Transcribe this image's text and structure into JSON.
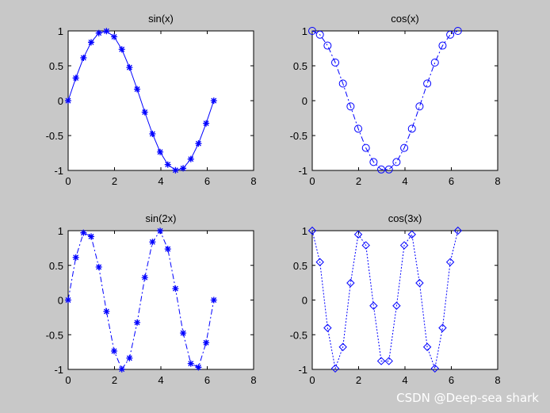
{
  "watermark": "CSDN @Deep-sea shark",
  "chart_data": [
    {
      "type": "line",
      "title": "sin(x)",
      "xlabel": "",
      "ylabel": "",
      "xlim": [
        0,
        8
      ],
      "ylim": [
        -1,
        1
      ],
      "xticks": [
        "0",
        "2",
        "4",
        "6",
        "8"
      ],
      "yticks": [
        "-1",
        "-0.5",
        "0",
        "0.5",
        "1"
      ],
      "grid": false,
      "color": "#0000ff",
      "line_style": "solid",
      "marker": "asterisk",
      "x": [
        0,
        0.3307,
        0.6614,
        0.9921,
        1.3228,
        1.6535,
        1.9842,
        2.3149,
        2.6456,
        2.9762,
        3.3069,
        3.6376,
        3.9683,
        4.299,
        4.6297,
        4.9604,
        5.2911,
        5.6218,
        5.9525,
        6.2832
      ],
      "y": [
        0,
        0.3247,
        0.6142,
        0.8372,
        0.9694,
        0.9966,
        0.9158,
        0.7357,
        0.4759,
        0.1646,
        -0.1646,
        -0.4759,
        -0.7357,
        -0.9158,
        -0.9966,
        -0.9694,
        -0.8372,
        -0.6142,
        -0.3247,
        0
      ]
    },
    {
      "type": "line",
      "title": "cos(x)",
      "xlabel": "",
      "ylabel": "",
      "xlim": [
        0,
        8
      ],
      "ylim": [
        -1,
        1
      ],
      "xticks": [
        "0",
        "2",
        "4",
        "6",
        "8"
      ],
      "yticks": [
        "-1",
        "-0.5",
        "0",
        "0.5",
        "1"
      ],
      "grid": false,
      "color": "#0000ff",
      "line_style": "dash-dot",
      "marker": "circle",
      "x": [
        0,
        0.3307,
        0.6614,
        0.9921,
        1.3228,
        1.6535,
        1.9842,
        2.3149,
        2.6456,
        2.9762,
        3.3069,
        3.6376,
        3.9683,
        4.299,
        4.6297,
        4.9604,
        5.2911,
        5.6218,
        5.9525,
        6.2832
      ],
      "y": [
        1,
        0.9458,
        0.7891,
        0.5469,
        0.2455,
        -0.0826,
        -0.4017,
        -0.6773,
        -0.8795,
        -0.9864,
        -0.9864,
        -0.8795,
        -0.6773,
        -0.4017,
        -0.0826,
        0.2455,
        0.5469,
        0.7891,
        0.9458,
        1
      ]
    },
    {
      "type": "line",
      "title": "sin(2x)",
      "xlabel": "",
      "ylabel": "",
      "xlim": [
        0,
        8
      ],
      "ylim": [
        -1,
        1
      ],
      "xticks": [
        "0",
        "2",
        "4",
        "6",
        "8"
      ],
      "yticks": [
        "-1",
        "-0.5",
        "0",
        "0.5",
        "1"
      ],
      "grid": false,
      "color": "#0000ff",
      "line_style": "dash-dot",
      "marker": "asterisk",
      "x": [
        0,
        0.3307,
        0.6614,
        0.9921,
        1.3228,
        1.6535,
        1.9842,
        2.3149,
        2.6456,
        2.9762,
        3.3069,
        3.6376,
        3.9683,
        4.299,
        4.6297,
        4.9604,
        5.2911,
        5.6218,
        5.9525,
        6.2832
      ],
      "y": [
        0,
        0.6142,
        0.9694,
        0.9158,
        0.4759,
        -0.1646,
        -0.7357,
        -0.9966,
        -0.8372,
        -0.3247,
        0.3247,
        0.8372,
        0.9966,
        0.7357,
        0.1646,
        -0.4759,
        -0.9158,
        -0.9694,
        -0.6142,
        0
      ]
    },
    {
      "type": "line",
      "title": "cos(3x)",
      "xlabel": "",
      "ylabel": "",
      "xlim": [
        0,
        8
      ],
      "ylim": [
        -1,
        1
      ],
      "xticks": [
        "0",
        "2",
        "4",
        "6",
        "8"
      ],
      "yticks": [
        "-1",
        "-0.5",
        "0",
        "0.5",
        "1"
      ],
      "grid": false,
      "color": "#0000ff",
      "line_style": "dotted",
      "marker": "diamond",
      "x": [
        0,
        0.3307,
        0.6614,
        0.9921,
        1.3228,
        1.6535,
        1.9842,
        2.3149,
        2.6456,
        2.9762,
        3.3069,
        3.6376,
        3.9683,
        4.299,
        4.6297,
        4.9604,
        5.2911,
        5.6218,
        5.9525,
        6.2832
      ],
      "y": [
        1,
        0.5469,
        -0.4017,
        -0.9864,
        -0.6773,
        0.2455,
        0.9458,
        0.7891,
        -0.0826,
        -0.8795,
        -0.8795,
        -0.0826,
        0.7891,
        0.9458,
        0.2455,
        -0.6773,
        -0.9864,
        -0.4017,
        0.5469,
        1
      ]
    }
  ]
}
